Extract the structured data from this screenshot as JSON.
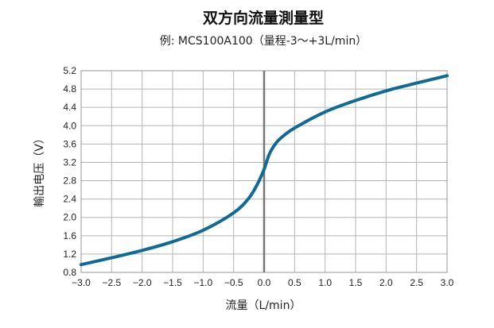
{
  "chart_data": {
    "type": "line",
    "title": "双方向流量測量型",
    "subtitle": "例: MCS100A100（量程-3〜+3L/min）",
    "xlabel": "流量（L/min）",
    "ylabel": "輸出电压（V）",
    "xlim": [
      -3.0,
      3.0
    ],
    "ylim": [
      0.8,
      5.2
    ],
    "x_ticks": [
      "−3.0",
      "−2.5",
      "−2.0",
      "−1.5",
      "−1.0",
      "−0.5",
      "0.0",
      "0.5",
      "1.0",
      "1.5",
      "2.0",
      "2.5",
      "3.0"
    ],
    "y_ticks": [
      "5.2",
      "4.8",
      "4.4",
      "4.0",
      "3.6",
      "3.2",
      "2.8",
      "2.4",
      "2.0",
      "1.6",
      "1.2",
      "0.8"
    ],
    "grid": true,
    "series": [
      {
        "color": "#0f6a96",
        "x": [
          -3.0,
          -2.5,
          -2.0,
          -1.5,
          -1.0,
          -0.5,
          -0.25,
          -0.1,
          0.0,
          0.05,
          0.1,
          0.2,
          0.3,
          0.5,
          1.0,
          1.5,
          2.0,
          2.5,
          3.0
        ],
        "y": [
          0.97,
          1.12,
          1.28,
          1.47,
          1.72,
          2.1,
          2.42,
          2.75,
          3.05,
          3.25,
          3.42,
          3.63,
          3.76,
          3.95,
          4.3,
          4.55,
          4.76,
          4.93,
          5.09
        ]
      }
    ],
    "zero_line_color": "#777777"
  }
}
